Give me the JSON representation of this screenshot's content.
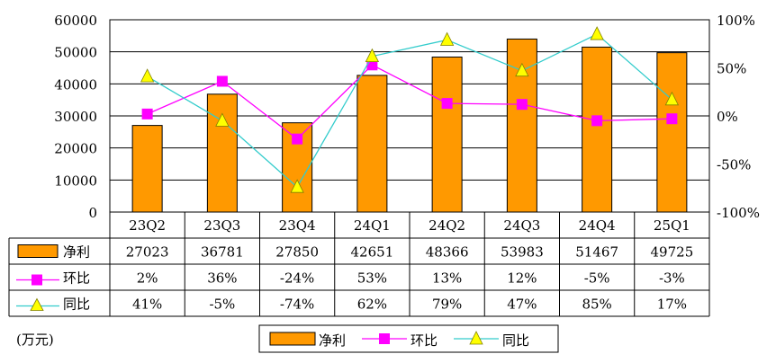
{
  "chart_data": {
    "type": "bar",
    "categories": [
      "23Q2",
      "23Q3",
      "23Q4",
      "24Q1",
      "24Q2",
      "24Q3",
      "24Q4",
      "25Q1"
    ],
    "series": [
      {
        "name": "净利",
        "kind": "bar",
        "axis": "left",
        "color": "#FF9900",
        "values": [
          27023,
          36781,
          27850,
          42651,
          48366,
          53983,
          51467,
          49725
        ],
        "labels": [
          "27023",
          "36781",
          "27850",
          "42651",
          "48366",
          "53983",
          "51467",
          "49725"
        ]
      },
      {
        "name": "环比",
        "kind": "line",
        "axis": "right",
        "color": "#FF00FF",
        "marker": "square",
        "values": [
          2,
          36,
          -24,
          53,
          13,
          12,
          -5,
          -3
        ],
        "labels": [
          "2%",
          "36%",
          "-24%",
          "53%",
          "13%",
          "12%",
          "-5%",
          "-3%"
        ]
      },
      {
        "name": "同比",
        "kind": "line",
        "axis": "right",
        "color": "#33CCCC",
        "marker": "triangle",
        "marker_fill": "#FFFF00",
        "values": [
          41,
          -5,
          -74,
          62,
          79,
          47,
          85,
          17
        ],
        "labels": [
          "41%",
          "-5%",
          "-74%",
          "62%",
          "79%",
          "47%",
          "85%",
          "17%"
        ]
      }
    ],
    "y_left": {
      "ylim": [
        0,
        60000
      ],
      "ticks": [
        "0",
        "10000",
        "20000",
        "30000",
        "40000",
        "50000",
        "60000"
      ]
    },
    "y_right": {
      "ylim": [
        -100,
        100
      ],
      "ticks": [
        "-100%",
        "-50%",
        "0%",
        "50%",
        "100%"
      ]
    },
    "grid": true,
    "legend_position": "bottom-center",
    "data_table": true,
    "unit_note": "(万元)"
  }
}
